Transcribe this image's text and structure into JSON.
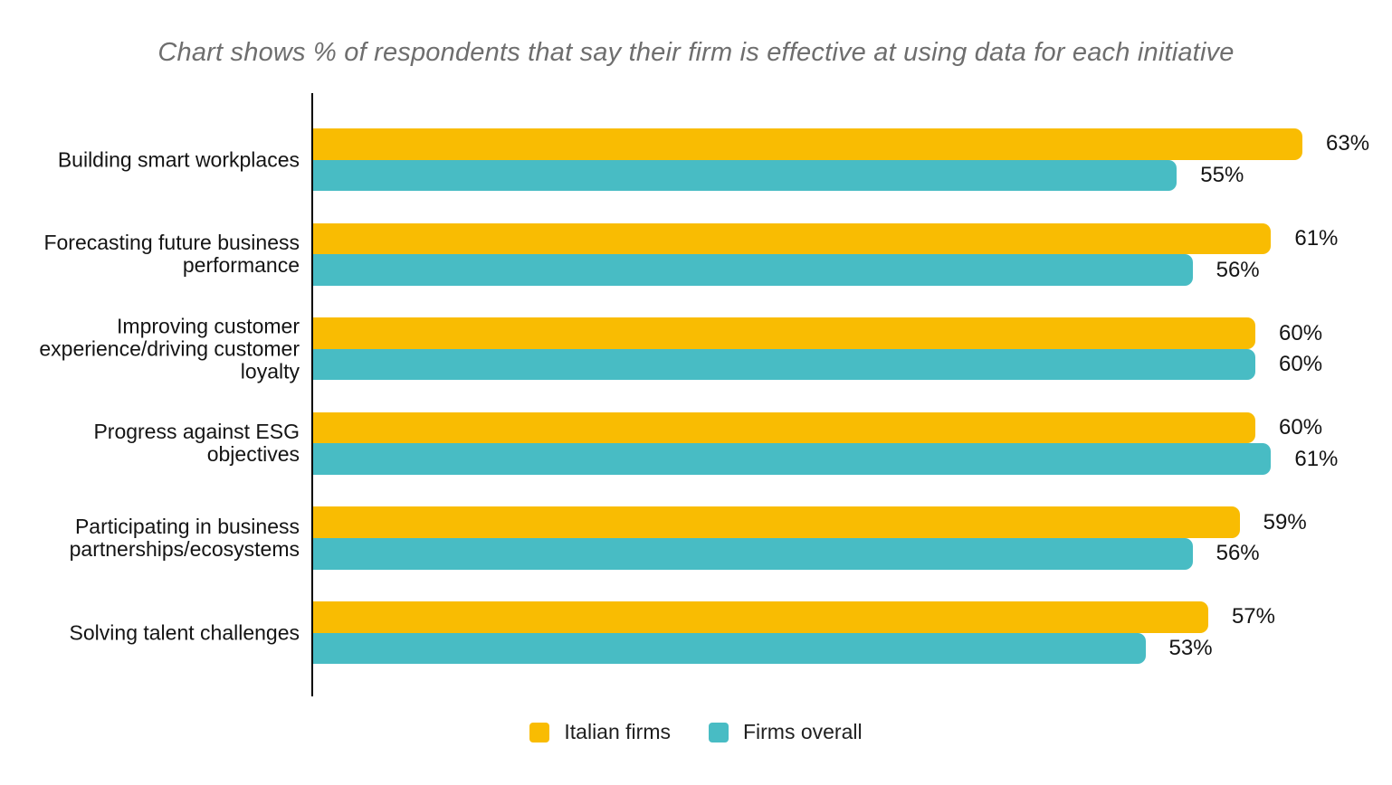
{
  "title": "Chart shows % of respondents that say their firm is effective at using data for each initiative",
  "chart_data": {
    "type": "bar",
    "orientation": "horizontal",
    "title": "Chart shows % of respondents that say their firm is effective at using data for each initiative",
    "categories": [
      "Building smart workplaces",
      "Forecasting future business\nperformance",
      "Improving customer\nexperience/driving customer\nloyalty",
      "Progress against ESG\nobjectives",
      "Participating in business\npartnerships/ecosystems",
      "Solving talent challenges"
    ],
    "series": [
      {
        "name": "Italian firms",
        "color": "#F9BC02",
        "values": [
          63,
          61,
          60,
          60,
          59,
          57
        ]
      },
      {
        "name": "Firms overall",
        "color": "#48BCC4",
        "values": [
          55,
          56,
          60,
          61,
          56,
          53
        ]
      }
    ],
    "value_suffix": "%",
    "value_labels": true,
    "xlim": [
      0,
      68.6
    ],
    "grid": false,
    "x_axis_ticks": false,
    "legend_position": "bottom",
    "axis_color": "#000000",
    "title_color": "#6E6E6E",
    "text_color": "#141414",
    "background": "#FFFFFF"
  }
}
